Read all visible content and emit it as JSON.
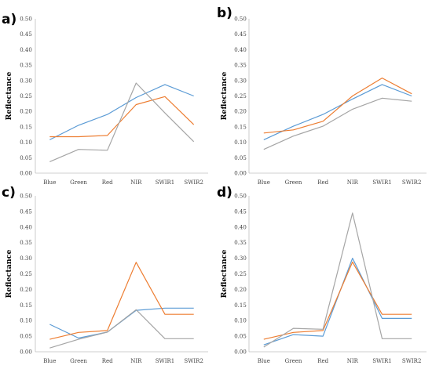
{
  "colors": {
    "blue": "#5b9bd5",
    "orange": "#ed7d31",
    "gray": "#a5a5a5"
  },
  "chart_data": [
    {
      "panel_label": "a)",
      "type": "line",
      "ylabel": "Reflectance",
      "categories": [
        "Blue",
        "Green",
        "Red",
        "NIR",
        "SWIR1",
        "SWIR2"
      ],
      "ylim": [
        0,
        0.5
      ],
      "yticks": [
        "0.00",
        "0.05",
        "0.10",
        "0.15",
        "0.20",
        "0.25",
        "0.30",
        "0.35",
        "0.40",
        "0.45",
        "0.50"
      ],
      "grid": false,
      "series": [
        {
          "color": "#5b9bd5",
          "values": [
            0.108,
            0.155,
            0.19,
            0.245,
            0.287,
            0.25
          ]
        },
        {
          "color": "#ed7d31",
          "values": [
            0.118,
            0.118,
            0.122,
            0.222,
            0.248,
            0.157
          ]
        },
        {
          "color": "#a5a5a5",
          "values": [
            0.037,
            0.077,
            0.074,
            0.292,
            0.195,
            0.102
          ]
        }
      ]
    },
    {
      "panel_label": "b)",
      "type": "line",
      "ylabel": "Reflectance",
      "categories": [
        "Blue",
        "Green",
        "Red",
        "NIR",
        "SWIR1",
        "SWIR2"
      ],
      "ylim": [
        0,
        0.5
      ],
      "yticks": [
        "0.00",
        "0.05",
        "0.10",
        "0.15",
        "0.20",
        "0.25",
        "0.30",
        "0.35",
        "0.40",
        "0.45",
        "0.50"
      ],
      "grid": false,
      "series": [
        {
          "color": "#5b9bd5",
          "values": [
            0.108,
            0.152,
            0.19,
            0.24,
            0.287,
            0.25
          ]
        },
        {
          "color": "#ed7d31",
          "values": [
            0.13,
            0.14,
            0.168,
            0.25,
            0.308,
            0.257
          ]
        },
        {
          "color": "#a5a5a5",
          "values": [
            0.077,
            0.12,
            0.152,
            0.207,
            0.243,
            0.233
          ]
        }
      ]
    },
    {
      "panel_label": "c)",
      "type": "line",
      "ylabel": "Reflectance",
      "categories": [
        "Blue",
        "Green",
        "Red",
        "NIR",
        "SWIR1",
        "SWIR2"
      ],
      "ylim": [
        0,
        0.5
      ],
      "yticks": [
        "0.00",
        "0.05",
        "0.10",
        "0.15",
        "0.20",
        "0.25",
        "0.30",
        "0.35",
        "0.40",
        "0.45",
        "0.50"
      ],
      "grid": false,
      "series": [
        {
          "color": "#5b9bd5",
          "values": [
            0.088,
            0.044,
            0.063,
            0.133,
            0.14,
            0.14
          ]
        },
        {
          "color": "#ed7d31",
          "values": [
            0.04,
            0.062,
            0.068,
            0.287,
            0.12,
            0.12
          ]
        },
        {
          "color": "#a5a5a5",
          "values": [
            0.012,
            0.04,
            0.063,
            0.135,
            0.042,
            0.042
          ]
        }
      ]
    },
    {
      "panel_label": "d)",
      "type": "line",
      "ylabel": "Reflectance",
      "categories": [
        "Blue",
        "Green",
        "Red",
        "NIR",
        "SWIR1",
        "SWIR2"
      ],
      "ylim": [
        0,
        0.5
      ],
      "yticks": [
        "0.00",
        "0.05",
        "0.10",
        "0.15",
        "0.20",
        "0.25",
        "0.30",
        "0.35",
        "0.40",
        "0.45",
        "0.50"
      ],
      "grid": false,
      "series": [
        {
          "color": "#5b9bd5",
          "values": [
            0.022,
            0.055,
            0.05,
            0.3,
            0.107,
            0.107
          ]
        },
        {
          "color": "#ed7d31",
          "values": [
            0.04,
            0.062,
            0.068,
            0.288,
            0.12,
            0.12
          ]
        },
        {
          "color": "#a5a5a5",
          "values": [
            0.015,
            0.075,
            0.072,
            0.445,
            0.042,
            0.042
          ]
        }
      ]
    }
  ]
}
